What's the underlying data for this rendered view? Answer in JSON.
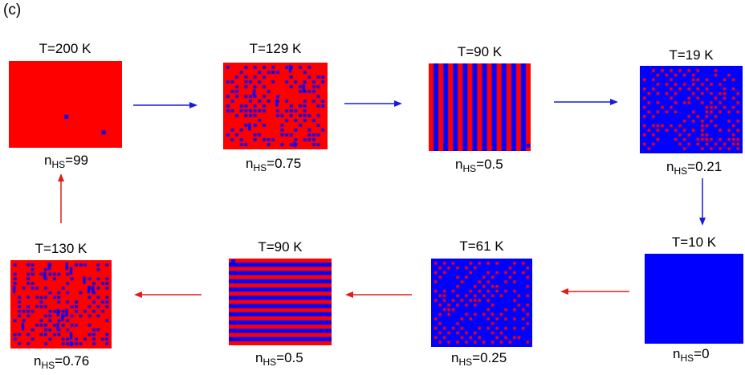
{
  "panel_label": "(c)",
  "colors": {
    "hs": "#ff0000",
    "ls": "#0000ff"
  },
  "arrow_colors": {
    "cooling": "#1a1adb",
    "heating": "#e21b1b"
  },
  "states": [
    {
      "id": "s1",
      "temperature": "T=200 K",
      "n_label": "n",
      "n_sub": "HS",
      "n_value": "=99",
      "pattern": "almost-all-hs",
      "cols": 20,
      "rows": 17
    },
    {
      "id": "s2",
      "temperature": "T=129 K",
      "n_label": "n",
      "n_sub": "HS",
      "n_value": "=0.75",
      "pattern": "random-domains",
      "fill": 0.75,
      "cols": 22,
      "rows": 17
    },
    {
      "id": "s3",
      "temperature": "T=90 K",
      "n_label": "n",
      "n_sub": "HS",
      "n_value": "=0.5",
      "pattern": "vertical-stripes",
      "cols": 21,
      "rows": 17
    },
    {
      "id": "s4",
      "temperature": "T=19 K",
      "n_label": "n",
      "n_sub": "HS",
      "n_value": "=0.21",
      "pattern": "sparse-dots",
      "fill": 0.21,
      "cols": 22,
      "rows": 18
    },
    {
      "id": "s5",
      "temperature": "T=10 K",
      "n_label": "n",
      "n_sub": "HS",
      "n_value": "=0",
      "pattern": "all-ls",
      "cols": 20,
      "rows": 18
    },
    {
      "id": "s6",
      "temperature": "T=61 K",
      "n_label": "n",
      "n_sub": "HS",
      "n_value": "=0.25",
      "pattern": "sparse-dots",
      "fill": 0.25,
      "cols": 22,
      "rows": 18
    },
    {
      "id": "s7",
      "temperature": "T=90 K",
      "n_label": "n",
      "n_sub": "HS",
      "n_value": "=0.5",
      "pattern": "horizontal-stripes",
      "cols": 22,
      "rows": 21
    },
    {
      "id": "s8",
      "temperature": "T=130 K",
      "n_label": "n",
      "n_sub": "HS",
      "n_value": "=0.76",
      "pattern": "random-domains",
      "fill": 0.76,
      "cols": 22,
      "rows": 18
    }
  ],
  "transitions": [
    {
      "from": "s1",
      "to": "s2",
      "kind": "cooling"
    },
    {
      "from": "s2",
      "to": "s3",
      "kind": "cooling"
    },
    {
      "from": "s3",
      "to": "s4",
      "kind": "cooling"
    },
    {
      "from": "s4",
      "to": "s5",
      "kind": "cooling"
    },
    {
      "from": "s5",
      "to": "s6",
      "kind": "heating"
    },
    {
      "from": "s6",
      "to": "s7",
      "kind": "heating"
    },
    {
      "from": "s7",
      "to": "s8",
      "kind": "heating"
    },
    {
      "from": "s8",
      "to": "s1",
      "kind": "heating"
    }
  ]
}
